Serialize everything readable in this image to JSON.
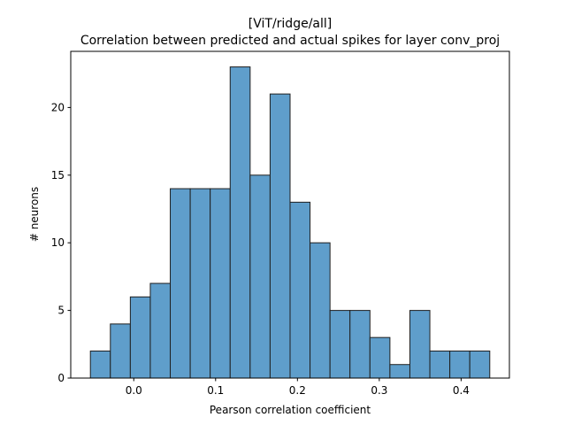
{
  "chart_data": {
    "type": "bar",
    "title": "[ViT/ridge/all]",
    "subtitle": "Correlation between predicted and actual spikes for layer conv_proj",
    "xlabel": "Pearson correlation coefficient",
    "ylabel": "# neurons",
    "bin_edges": [
      -0.053,
      -0.0286,
      -0.0042,
      0.0202,
      0.0446,
      0.069,
      0.0934,
      0.1178,
      0.1422,
      0.1666,
      0.191,
      0.2154,
      0.2398,
      0.2642,
      0.2886,
      0.313,
      0.3374,
      0.3618,
      0.3862,
      0.4106,
      0.435
    ],
    "values": [
      2,
      4,
      6,
      7,
      14,
      14,
      14,
      23,
      15,
      21,
      13,
      10,
      5,
      5,
      3,
      1,
      5,
      2,
      2,
      2
    ],
    "xlim": [
      -0.077,
      0.459
    ],
    "ylim": [
      0,
      24.15
    ],
    "xticks": [
      0.0,
      0.1,
      0.2,
      0.3,
      0.4
    ],
    "xtick_labels": [
      "0.0",
      "0.1",
      "0.2",
      "0.3",
      "0.4"
    ],
    "yticks": [
      0,
      5,
      10,
      15,
      20
    ],
    "ytick_labels": [
      "0",
      "5",
      "10",
      "15",
      "20"
    ],
    "bar_color": "#5f9ecb",
    "edge_color": "#1f1f1f",
    "grid": false,
    "legend": "none"
  }
}
